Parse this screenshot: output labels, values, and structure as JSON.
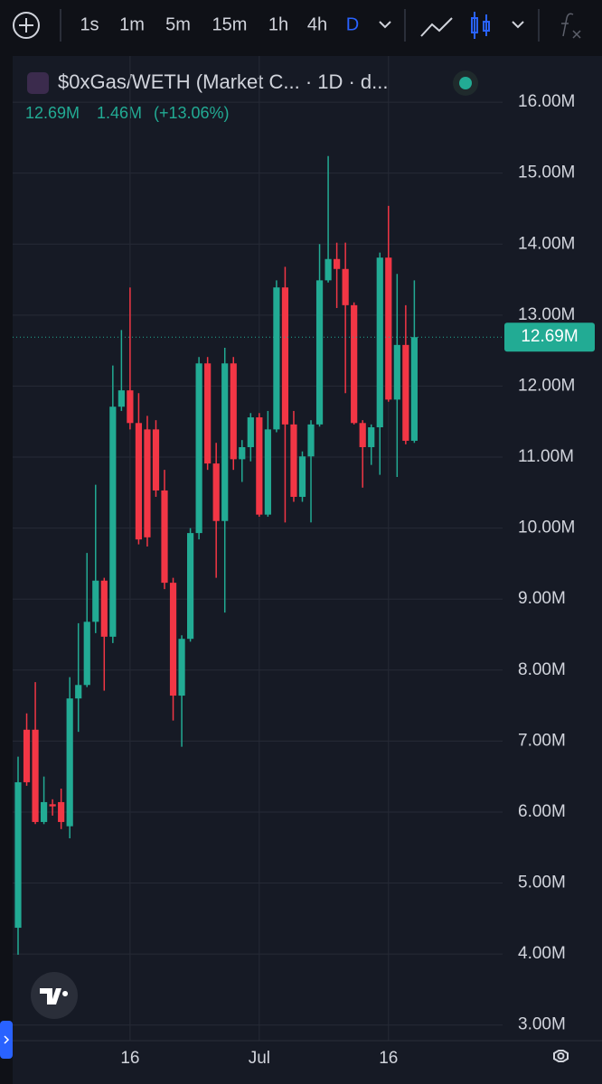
{
  "toolbar": {
    "intervals": [
      "1s",
      "1m",
      "5m",
      "15m",
      "1h",
      "4h",
      "D"
    ]
  },
  "chart_data": {
    "type": "candlestick",
    "title": "$0xGas/WETH (Market C... · 1D · d...",
    "legend_values": {
      "close": "12.69M",
      "change": "1.46M",
      "change_percent": "(+13.06%)"
    },
    "categories": [
      null,
      null,
      null,
      null,
      null,
      null,
      null,
      null,
      null,
      null,
      null,
      null,
      null,
      "16",
      null,
      null,
      null,
      null,
      null,
      null,
      null,
      null,
      null,
      null,
      null,
      null,
      null,
      null,
      "Jul",
      null,
      null,
      null,
      null,
      null,
      null,
      null,
      null,
      null,
      null,
      null,
      null,
      null,
      null,
      "16",
      null,
      null,
      null
    ],
    "series": {
      "up_color": "#22ab94",
      "down_color": "#f23645",
      "open": [
        4370000,
        7160000,
        7160000,
        5860000,
        6110000,
        6140000,
        5800000,
        7600000,
        7790000,
        8680000,
        9260000,
        8470000,
        11710000,
        11940000,
        11480000,
        11390000,
        11390000,
        10530000,
        9230000,
        7640000,
        8440000,
        9930000,
        12320000,
        10910000,
        10100000,
        12320000,
        10970000,
        11140000,
        11560000,
        10190000,
        11390000,
        13390000,
        11460000,
        10440000,
        11010000,
        11460000,
        13490000,
        13790000,
        13650000,
        13140000,
        11480000,
        11140000,
        11420000,
        13810000,
        11810000,
        12580000,
        11230000
      ],
      "high": [
        6780000,
        7390000,
        7830000,
        6500000,
        6180000,
        6330000,
        7900000,
        8660000,
        9650000,
        10610000,
        9300000,
        12290000,
        12790000,
        13390000,
        11900000,
        11580000,
        11520000,
        10820000,
        9300000,
        8490000,
        10000000,
        12410000,
        12410000,
        11200000,
        12540000,
        12410000,
        11240000,
        11620000,
        11620000,
        11650000,
        13490000,
        13680000,
        11650000,
        11080000,
        11520000,
        14000000,
        15240000,
        14020000,
        14020000,
        13180000,
        11520000,
        11460000,
        13880000,
        14540000,
        13580000,
        13140000,
        13490000
      ],
      "low": [
        3990000,
        6370000,
        5830000,
        5830000,
        5950000,
        5760000,
        5630000,
        7130000,
        7760000,
        8520000,
        7710000,
        8380000,
        11650000,
        11390000,
        9770000,
        9740000,
        10440000,
        9140000,
        7290000,
        6920000,
        8400000,
        9840000,
        10820000,
        9300000,
        8810000,
        10820000,
        10650000,
        10940000,
        10160000,
        10160000,
        11350000,
        10080000,
        10370000,
        10370000,
        10080000,
        11430000,
        13460000,
        13100000,
        11900000,
        11460000,
        10570000,
        10890000,
        10750000,
        11780000,
        10720000,
        11180000,
        11200000
      ],
      "close": [
        6420000,
        6420000,
        5860000,
        6140000,
        6080000,
        5860000,
        7600000,
        7790000,
        8680000,
        9260000,
        8470000,
        11710000,
        11940000,
        11480000,
        9840000,
        9870000,
        10530000,
        9230000,
        7640000,
        8440000,
        9930000,
        12320000,
        10910000,
        10100000,
        12320000,
        10970000,
        11140000,
        11560000,
        10190000,
        11390000,
        13390000,
        11460000,
        10440000,
        11010000,
        11460000,
        13490000,
        13790000,
        13650000,
        13140000,
        11480000,
        11140000,
        11420000,
        13810000,
        11810000,
        12580000,
        11230000,
        12690000
      ]
    },
    "last_price": {
      "value": 12690000,
      "label": "12.69M"
    },
    "ylim": [
      2780000,
      16650000
    ],
    "yticks": [
      {
        "value": 3000000,
        "label": "3.00M"
      },
      {
        "value": 4000000,
        "label": "4.00M"
      },
      {
        "value": 5000000,
        "label": "5.00M"
      },
      {
        "value": 6000000,
        "label": "6.00M"
      },
      {
        "value": 7000000,
        "label": "7.00M"
      },
      {
        "value": 8000000,
        "label": "8.00M"
      },
      {
        "value": 9000000,
        "label": "9.00M"
      },
      {
        "value": 10000000,
        "label": "10.00M"
      },
      {
        "value": 11000000,
        "label": "11.00M"
      },
      {
        "value": 12000000,
        "label": "12.00M"
      },
      {
        "value": 13000000,
        "label": "13.00M"
      },
      {
        "value": 14000000,
        "label": "14.00M"
      },
      {
        "value": 15000000,
        "label": "15.00M"
      },
      {
        "value": 16000000,
        "label": "16.00M"
      }
    ],
    "grid": true
  }
}
